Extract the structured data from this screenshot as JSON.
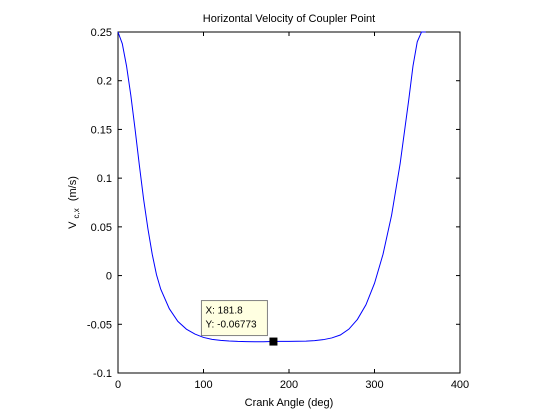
{
  "chart_data": {
    "type": "line",
    "title": "Horizontal Velocity of Coupler Point",
    "xlabel": "Crank Angle (deg)",
    "ylabel": {
      "base": "V",
      "subscript": "c,x",
      "unit": "(m/s)"
    },
    "xlim": [
      0,
      400
    ],
    "ylim": [
      -0.1,
      0.25
    ],
    "xticks": [
      0,
      100,
      200,
      300,
      400
    ],
    "xtick_labels": [
      "0",
      "100",
      "200",
      "300",
      "400"
    ],
    "yticks": [
      -0.1,
      -0.05,
      0,
      0.05,
      0.1,
      0.15,
      0.2,
      0.25
    ],
    "ytick_labels": [
      "-0.1",
      "-0.05",
      "0",
      "0.05",
      "0.1",
      "0.15",
      "0.2",
      "0.25"
    ],
    "grid": false,
    "series": [
      {
        "color": "#0000ff",
        "x": [
          0,
          5,
          10,
          15,
          20,
          25,
          30,
          35,
          40,
          45,
          50,
          60,
          70,
          80,
          90,
          100,
          110,
          120,
          130,
          140,
          150,
          160,
          170,
          180,
          190,
          200,
          210,
          220,
          230,
          240,
          250,
          260,
          270,
          280,
          290,
          300,
          310,
          320,
          330,
          340,
          345,
          350,
          355,
          360
        ],
        "y": [
          0.25,
          0.238,
          0.215,
          0.185,
          0.15,
          0.113,
          0.078,
          0.048,
          0.022,
          0.001,
          -0.014,
          -0.034,
          -0.047,
          -0.055,
          -0.06,
          -0.0635,
          -0.0655,
          -0.0665,
          -0.0672,
          -0.0676,
          -0.0678,
          -0.0679,
          -0.0679,
          -0.0677,
          -0.0676,
          -0.0675,
          -0.0674,
          -0.0673,
          -0.0668,
          -0.0658,
          -0.064,
          -0.061,
          -0.055,
          -0.045,
          -0.03,
          -0.008,
          0.022,
          0.062,
          0.115,
          0.18,
          0.215,
          0.24,
          0.25,
          0.25
        ]
      }
    ],
    "datatip": {
      "x_value": 181.8,
      "y_value": -0.06773,
      "x_text": "X: 181.8",
      "y_text": "Y: -0.06773"
    }
  }
}
